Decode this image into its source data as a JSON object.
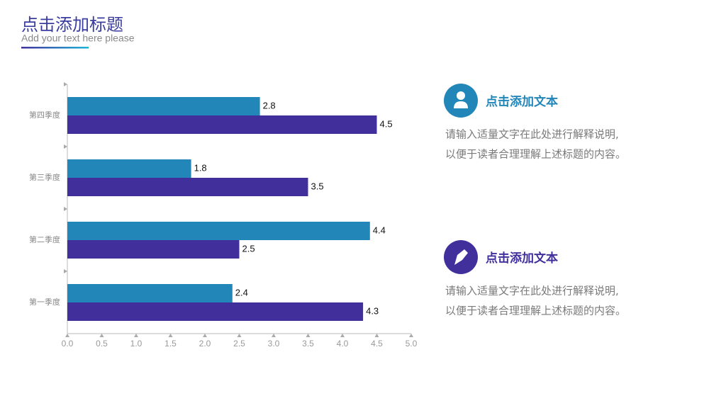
{
  "header": {
    "title": "点击添加标题",
    "subtitle": "Add your text here please"
  },
  "chart_data": {
    "type": "bar",
    "orientation": "horizontal",
    "categories": [
      "第一季度",
      "第二季度",
      "第三季度",
      "第四季度"
    ],
    "series": [
      {
        "color": "#2386b8",
        "values": [
          2.4,
          4.4,
          1.8,
          2.8
        ]
      },
      {
        "color": "#41309c",
        "values": [
          4.3,
          2.5,
          3.5,
          4.5
        ]
      }
    ],
    "xlim": [
      0,
      5
    ],
    "xticks": [
      {
        "value": 0,
        "label": "0.0"
      },
      {
        "value": 0.5,
        "label": "0.5"
      },
      {
        "value": 1,
        "label": "1.0"
      },
      {
        "value": 1.5,
        "label": "1.5"
      },
      {
        "value": 2,
        "label": "2.0"
      },
      {
        "value": 2.5,
        "label": "2.5"
      },
      {
        "value": 3,
        "label": "3.0"
      },
      {
        "value": 3.5,
        "label": "3.5"
      },
      {
        "value": 4,
        "label": "4.0"
      },
      {
        "value": 4.5,
        "label": "4.5"
      },
      {
        "value": 5,
        "label": "5.0"
      }
    ]
  },
  "panels": [
    {
      "heading": "点击添加文本",
      "body": [
        "请输入适量文字在此处进行解释说明,",
        "以便于读者合理理解上述标题的内容。"
      ]
    },
    {
      "heading": "点击添加文本",
      "body": [
        "请输入适量文字在此处进行解释说明,",
        "以便于读者合理理解上述标题的内容。"
      ]
    }
  ]
}
